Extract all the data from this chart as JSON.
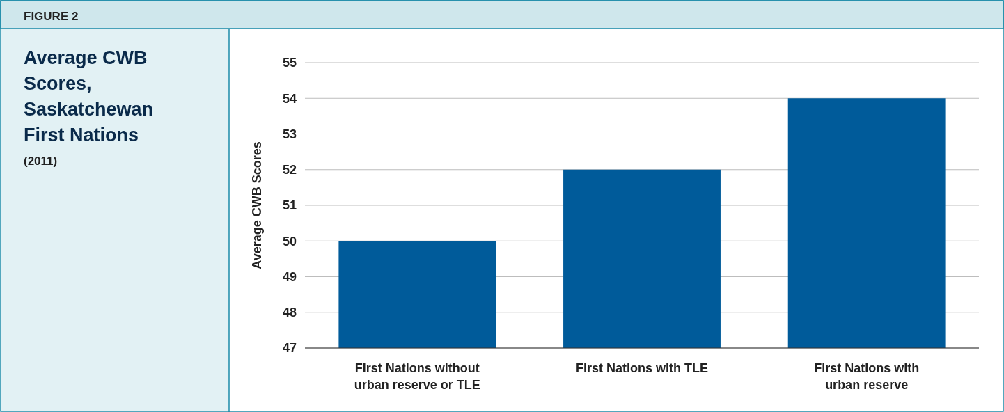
{
  "chart_data": {
    "type": "bar",
    "title": "Average CWB Scores, Saskatchewan First Nations",
    "subtitle": "(2011)",
    "ylabel": "Average CWB Scores",
    "annotations": [
      "FIGURE 2"
    ],
    "categories": [
      "First Nations without urban reserve or TLE",
      "First Nations with TLE",
      "First Nations with urban reserve"
    ],
    "values": [
      50,
      52,
      54
    ],
    "color": "#005b9a",
    "ylim": [
      47,
      55
    ],
    "yticks": [
      47,
      48,
      49,
      50,
      51,
      52,
      53,
      54,
      55
    ],
    "grid": "y"
  }
}
